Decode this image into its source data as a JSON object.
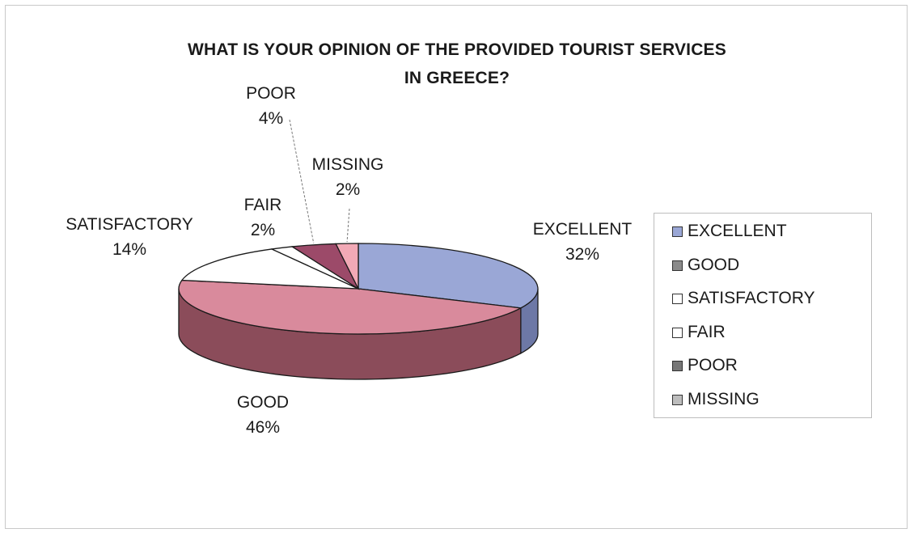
{
  "chart_data": {
    "type": "pie",
    "title": "WHAT IS YOUR OPINION OF THE PROVIDED TOURIST SERVICES IN GREECE?",
    "title_lines": [
      "WHAT IS YOUR OPINION OF THE PROVIDED TOURIST SERVICES",
      "IN GREECE?"
    ],
    "slices": [
      {
        "label": "EXCELLENT",
        "value": 32,
        "percent_label": "32%",
        "color": "#9aa7d6",
        "side_color": "#6d78a6"
      },
      {
        "label": "GOOD",
        "value": 46,
        "percent_label": "46%",
        "color": "#d98a9c",
        "side_color": "#8b4c5a"
      },
      {
        "label": "SATISFACTORY",
        "value": 14,
        "percent_label": "14%",
        "color": "#ffffff",
        "side_color": "#d8d8d8"
      },
      {
        "label": "FAIR",
        "value": 2,
        "percent_label": "2%",
        "color": "#ffffff",
        "side_color": "#d8d8d8"
      },
      {
        "label": "POOR",
        "value": 4,
        "percent_label": "4%",
        "color": "#9c4a69",
        "side_color": "#6e3049"
      },
      {
        "label": "MISSING",
        "value": 2,
        "percent_label": "2%",
        "color": "#f2a9b6",
        "side_color": "#c07b88"
      }
    ],
    "legend_position": "right",
    "legend_colors": [
      "#9aa7d6",
      "#8a8a8a",
      "#ffffff",
      "#ffffff",
      "#777777",
      "#bdbdbd"
    ]
  }
}
